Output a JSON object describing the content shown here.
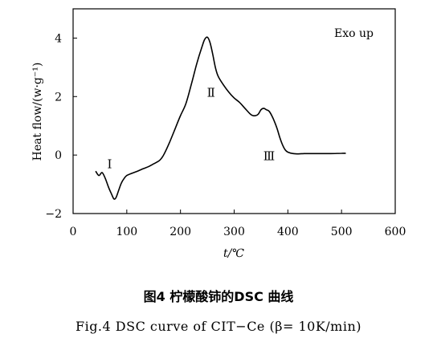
{
  "figure": {
    "caption_cn": "图4   柠檬酸铈的DSC 曲线",
    "caption_en": "Fig.4   DSC curve of CIT−Ce (β= 10K/min)"
  },
  "chart_data": {
    "type": "line",
    "title": "",
    "xlabel": "t/℃",
    "ylabel": "Heat flow/(w·g⁻¹)",
    "xlim": [
      0,
      600
    ],
    "ylim": [
      -2,
      5
    ],
    "xticks": [
      0,
      100,
      200,
      300,
      400,
      500,
      600
    ],
    "yticks": [
      -2,
      0,
      2,
      4
    ],
    "grid": false,
    "legend_text": "Exo up",
    "legend_position": "top-right",
    "annotations": [
      {
        "text": "Ⅰ",
        "x": 68,
        "y": -0.45
      },
      {
        "text": "Ⅱ",
        "x": 257,
        "y": 2.0
      },
      {
        "text": "Ⅲ",
        "x": 365,
        "y": -0.18
      }
    ],
    "series": [
      {
        "x": [
          42,
          48,
          54,
          60,
          66,
          72,
          76,
          80,
          85,
          90,
          95,
          100,
          110,
          120,
          130,
          140,
          150,
          160,
          165,
          170,
          180,
          190,
          200,
          210,
          220,
          230,
          240,
          245,
          250,
          255,
          260,
          265,
          270,
          280,
          290,
          300,
          310,
          320,
          330,
          335,
          340,
          345,
          350,
          355,
          360,
          365,
          370,
          375,
          380,
          385,
          390,
          395,
          400,
          410,
          420,
          430,
          440,
          460,
          480,
          500,
          508
        ],
        "y": [
          -0.55,
          -0.7,
          -0.6,
          -0.8,
          -1.1,
          -1.35,
          -1.5,
          -1.45,
          -1.2,
          -0.95,
          -0.8,
          -0.7,
          -0.62,
          -0.55,
          -0.47,
          -0.4,
          -0.3,
          -0.2,
          -0.1,
          0.05,
          0.45,
          0.9,
          1.35,
          1.75,
          2.4,
          3.1,
          3.7,
          3.95,
          4.03,
          3.85,
          3.45,
          3.0,
          2.7,
          2.4,
          2.15,
          1.95,
          1.8,
          1.6,
          1.4,
          1.35,
          1.35,
          1.4,
          1.55,
          1.6,
          1.55,
          1.5,
          1.35,
          1.15,
          0.9,
          0.6,
          0.35,
          0.18,
          0.1,
          0.05,
          0.04,
          0.05,
          0.05,
          0.05,
          0.05,
          0.06,
          0.06
        ]
      }
    ]
  }
}
